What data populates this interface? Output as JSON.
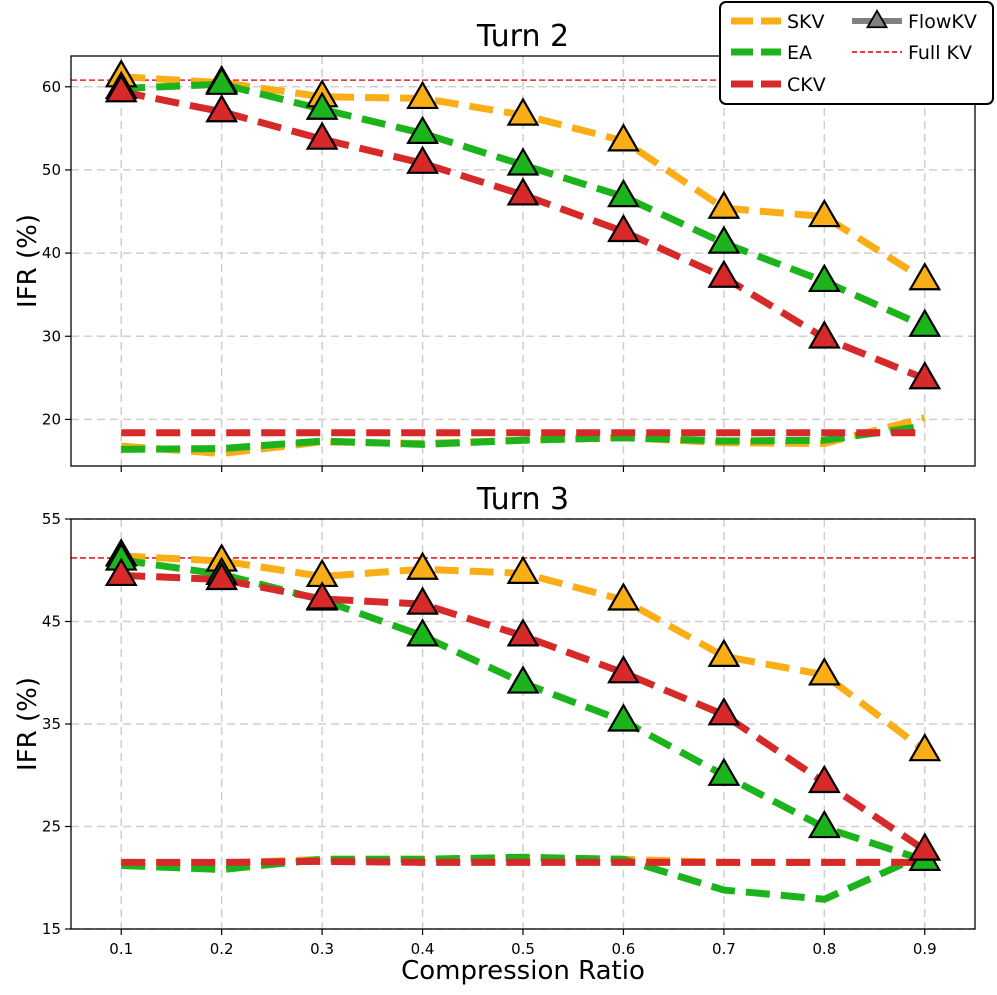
{
  "colors": {
    "SKV": "#f9ae17",
    "EA": "#1db31d",
    "CKV": "#d62a2a",
    "FullKV": "#e8201e",
    "FlowKV": "#808080"
  },
  "legend": {
    "entries": [
      {
        "key": "SKV",
        "label": "SKV",
        "style": "dashed"
      },
      {
        "key": "EA",
        "label": "EA",
        "style": "dashed"
      },
      {
        "key": "CKV",
        "label": "CKV",
        "style": "dashed"
      },
      {
        "key": "FlowKV",
        "label": "FlowKV",
        "style": "solid-triangle"
      },
      {
        "key": "FullKV",
        "label": "Full KV",
        "style": "thin-dashed"
      }
    ]
  },
  "chart_data": [
    {
      "type": "line",
      "title": "Turn 2",
      "xlabel": "",
      "ylabel": "IFR (%)",
      "xlim": [
        0.05,
        0.95
      ],
      "ylim": [
        14.4,
        63.7
      ],
      "yticks": [
        20,
        30,
        40,
        50,
        60
      ],
      "x": [
        0.1,
        0.2,
        0.3,
        0.4,
        0.5,
        0.6,
        0.7,
        0.8,
        0.9
      ],
      "full_kv": 60.8,
      "series": [
        {
          "name": "SKV",
          "method": "baseline",
          "values": [
            16.8,
            15.9,
            17.3,
            17.1,
            17.5,
            17.8,
            17.2,
            17.1,
            20.2
          ]
        },
        {
          "name": "EA",
          "method": "baseline",
          "values": [
            16.4,
            16.5,
            17.4,
            17.0,
            17.5,
            17.8,
            17.4,
            17.5,
            19.2
          ]
        },
        {
          "name": "CKV",
          "method": "baseline",
          "values": [
            18.4,
            18.4,
            18.4,
            18.4,
            18.4,
            18.4,
            18.4,
            18.4,
            18.4
          ]
        },
        {
          "name": "SKV",
          "method": "FlowKV",
          "values": [
            61.2,
            60.5,
            58.8,
            58.6,
            56.6,
            53.5,
            45.4,
            44.4,
            36.8
          ]
        },
        {
          "name": "EA",
          "method": "FlowKV",
          "values": [
            59.8,
            60.3,
            57.3,
            54.4,
            50.6,
            46.8,
            41.2,
            36.6,
            31.2
          ]
        },
        {
          "name": "CKV",
          "method": "FlowKV",
          "values": [
            59.4,
            57.0,
            53.7,
            50.8,
            47.0,
            42.6,
            37.1,
            29.8,
            24.9
          ]
        }
      ]
    },
    {
      "type": "line",
      "title": "Turn 3",
      "xlabel": "Compression Ratio",
      "ylabel": "IFR (%)",
      "xlim": [
        0.05,
        0.95
      ],
      "ylim": [
        15,
        55
      ],
      "yticks": [
        15,
        25,
        35,
        45,
        55
      ],
      "x": [
        0.1,
        0.2,
        0.3,
        0.4,
        0.5,
        0.6,
        0.7,
        0.8,
        0.9
      ],
      "xtick_labels": [
        "0.1",
        "0.2",
        "0.3",
        "0.4",
        "0.5",
        "0.6",
        "0.7",
        "0.8",
        "0.9"
      ],
      "full_kv": 51.2,
      "series": [
        {
          "name": "SKV",
          "method": "baseline",
          "values": [
            21.5,
            21.4,
            21.8,
            21.8,
            21.9,
            21.8,
            21.5,
            21.5,
            21.5
          ]
        },
        {
          "name": "EA",
          "method": "baseline",
          "values": [
            21.2,
            20.8,
            21.8,
            21.8,
            22.0,
            21.8,
            18.8,
            17.9,
            22.3
          ]
        },
        {
          "name": "CKV",
          "method": "baseline",
          "values": [
            21.5,
            21.5,
            21.6,
            21.5,
            21.5,
            21.5,
            21.5,
            21.5,
            21.5
          ]
        },
        {
          "name": "SKV",
          "method": "FlowKV",
          "values": [
            51.4,
            50.9,
            49.4,
            50.1,
            49.7,
            47.1,
            41.6,
            39.8,
            32.4
          ]
        },
        {
          "name": "EA",
          "method": "FlowKV",
          "values": [
            51.0,
            49.6,
            47.1,
            43.6,
            39.0,
            35.3,
            30.0,
            24.9,
            21.7
          ]
        },
        {
          "name": "CKV",
          "method": "FlowKV",
          "values": [
            49.5,
            49.1,
            47.2,
            46.7,
            43.6,
            40.0,
            35.9,
            29.3,
            22.7
          ]
        }
      ]
    }
  ]
}
